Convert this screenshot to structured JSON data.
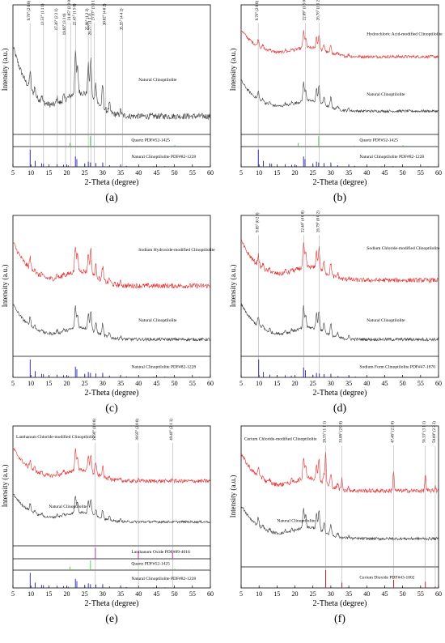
{
  "colors": {
    "natural": "#3a3a3a",
    "modified": "#e03030",
    "quartz": "#44cc44",
    "ref_blue": "#2222aa",
    "ref_purple": "#aa22aa",
    "ref_red": "#cc1111",
    "frame": "#000000"
  },
  "chart_data": [
    {
      "type": "line",
      "panel": "(a)",
      "xlabel": "2-Theta (degree)",
      "ylabel": "Intensity (a.u.)",
      "xlim": [
        5,
        60
      ],
      "x_ticks": [
        5,
        10,
        15,
        20,
        25,
        30,
        35,
        40,
        45,
        50,
        55,
        60
      ],
      "series": [
        {
          "name": "Natural Clinoptilolite",
          "role": "natural"
        }
      ],
      "peak_labels": [
        {
          "x": 9.76,
          "text": "9.76° (2 0 0)"
        },
        {
          "x": 13.53,
          "text": "13.53° (1 1 1)"
        },
        {
          "x": 17.36,
          "text": "17.36° (2 2 1)"
        },
        {
          "x": 19.66,
          "text": "19.66° (3 3 0)"
        },
        {
          "x": 21.05,
          "text": "21.05° (2 0 0)"
        },
        {
          "x": 22.43,
          "text": "22.43° (1 5 0)"
        },
        {
          "x": 25.98,
          "text": "25.98° (1 2 3)"
        },
        {
          "x": 26.77,
          "text": "26.77° (1 1 2)"
        },
        {
          "x": 27.67,
          "text": "27.67° (3 1 1)"
        },
        {
          "x": 30.82,
          "text": "30.82° (4 0 2)"
        },
        {
          "x": 35.55,
          "text": "35.55° (4 4 2)"
        }
      ],
      "references": [
        {
          "name": "Quartz PDF#52-1425",
          "role": "quartz",
          "lines": [
            [
              20.9,
              35
            ],
            [
              26.6,
              100
            ],
            [
              36.5,
              10
            ],
            [
              39.5,
              8
            ],
            [
              40.3,
              6
            ],
            [
              42.4,
              7
            ],
            [
              45.8,
              5
            ],
            [
              50.1,
              15
            ],
            [
              54.9,
              6
            ],
            [
              59.9,
              10
            ]
          ]
        },
        {
          "name": "Natural Clinoptilolite PDF#82-1228",
          "role": "ref_blue",
          "lines": [
            [
              9.8,
              100
            ],
            [
              11.2,
              35
            ],
            [
              13.0,
              20
            ],
            [
              13.5,
              18
            ],
            [
              17.3,
              15
            ],
            [
              19.1,
              12
            ],
            [
              20.4,
              8
            ],
            [
              22.4,
              60
            ],
            [
              22.8,
              45
            ],
            [
              25.0,
              20
            ],
            [
              26.0,
              30
            ],
            [
              26.6,
              25
            ],
            [
              28.1,
              22
            ],
            [
              30.0,
              25
            ],
            [
              31.9,
              10
            ],
            [
              35.0,
              8
            ],
            [
              36.6,
              6
            ],
            [
              40.0,
              5
            ],
            [
              44.2,
              4
            ],
            [
              47.3,
              4
            ],
            [
              50.0,
              4
            ],
            [
              55.0,
              3
            ],
            [
              57.0,
              3
            ]
          ]
        }
      ]
    },
    {
      "type": "line",
      "panel": "(b)",
      "xlabel": "2-Theta (degree)",
      "ylabel": "Intensity (a.u.)",
      "xlim": [
        5,
        60
      ],
      "x_ticks": [
        5,
        10,
        15,
        20,
        25,
        30,
        35,
        40,
        45,
        50,
        55,
        60
      ],
      "series": [
        {
          "name": "Hydrochloric Acid-modified Clinoptilolite",
          "role": "modified"
        },
        {
          "name": "Natural Clinoptilolite",
          "role": "natural"
        }
      ],
      "peak_labels": [
        {
          "x": 9.76,
          "text": "9.76° (2 0 0)"
        },
        {
          "x": 22.89,
          "text": "22.89° (1 5 0)"
        },
        {
          "x": 26.76,
          "text": "26.76° (1 1 2)"
        }
      ],
      "references": [
        {
          "name": "Quartz PDF#52-1425",
          "role": "quartz",
          "lines": [
            [
              20.9,
              35
            ],
            [
              26.6,
              100
            ],
            [
              36.5,
              10
            ],
            [
              39.5,
              8
            ],
            [
              40.3,
              6
            ],
            [
              42.4,
              7
            ],
            [
              45.8,
              5
            ],
            [
              50.1,
              15
            ],
            [
              54.9,
              6
            ],
            [
              59.9,
              10
            ]
          ]
        },
        {
          "name": "Natural Clinoptilolite PDF#82-1228",
          "role": "ref_blue",
          "lines": [
            [
              9.8,
              100
            ],
            [
              11.2,
              35
            ],
            [
              13.0,
              20
            ],
            [
              13.5,
              18
            ],
            [
              17.3,
              15
            ],
            [
              19.1,
              12
            ],
            [
              20.4,
              8
            ],
            [
              22.4,
              60
            ],
            [
              22.8,
              45
            ],
            [
              25.0,
              20
            ],
            [
              26.0,
              30
            ],
            [
              26.6,
              25
            ],
            [
              28.1,
              22
            ],
            [
              30.0,
              25
            ],
            [
              31.9,
              10
            ],
            [
              35.0,
              8
            ],
            [
              36.6,
              6
            ],
            [
              40.0,
              5
            ],
            [
              44.2,
              4
            ],
            [
              47.3,
              4
            ],
            [
              50.0,
              4
            ],
            [
              55.0,
              3
            ],
            [
              57.0,
              3
            ]
          ]
        }
      ]
    },
    {
      "type": "line",
      "panel": "(c)",
      "xlabel": "2-Theta (degree)",
      "ylabel": "Intensity (a.u.)",
      "xlim": [
        5,
        60
      ],
      "x_ticks": [
        5,
        10,
        15,
        20,
        25,
        30,
        35,
        40,
        45,
        50,
        55,
        60
      ],
      "series": [
        {
          "name": "Sodium Hydroxide-modified Clinoptilolite",
          "role": "modified"
        },
        {
          "name": "Natural Clinoptilolite",
          "role": "natural"
        }
      ],
      "peak_labels": [],
      "references": [
        {
          "name": "Natural Clinoptilolite PDF#82-1228",
          "role": "ref_blue",
          "lines": [
            [
              9.8,
              100
            ],
            [
              11.2,
              35
            ],
            [
              13.0,
              20
            ],
            [
              13.5,
              18
            ],
            [
              17.3,
              15
            ],
            [
              19.1,
              12
            ],
            [
              20.4,
              8
            ],
            [
              22.4,
              60
            ],
            [
              22.8,
              45
            ],
            [
              25.0,
              20
            ],
            [
              26.0,
              30
            ],
            [
              26.6,
              25
            ],
            [
              28.1,
              22
            ],
            [
              30.0,
              25
            ],
            [
              31.9,
              10
            ],
            [
              35.0,
              8
            ],
            [
              36.6,
              6
            ],
            [
              40.0,
              5
            ],
            [
              44.2,
              4
            ],
            [
              47.3,
              4
            ],
            [
              50.0,
              4
            ],
            [
              55.0,
              3
            ],
            [
              57.0,
              3
            ]
          ]
        }
      ]
    },
    {
      "type": "line",
      "panel": "(d)",
      "xlabel": "2-Theta (degree)",
      "ylabel": "Intensity (a.u.)",
      "xlim": [
        5,
        60
      ],
      "x_ticks": [
        5,
        10,
        15,
        20,
        25,
        30,
        35,
        40,
        45,
        50,
        55,
        60
      ],
      "series": [
        {
          "name": "Sodium Chloride-modified Clinoptilolite",
          "role": "modified"
        },
        {
          "name": "Natural Clinoptilolite",
          "role": "natural"
        }
      ],
      "peak_labels": [
        {
          "x": 9.85,
          "text": "9.85° (0 2 0)"
        },
        {
          "x": 22.48,
          "text": "22.48° (4 0 0)"
        },
        {
          "x": 26.79,
          "text": "26.79° (0 0 2)"
        }
      ],
      "references": [
        {
          "name": "Sodium Form Clinoptilolite PDF#47-1870",
          "role": "ref_blue",
          "lines": [
            [
              9.9,
              100
            ],
            [
              11.2,
              30
            ],
            [
              13.0,
              15
            ],
            [
              17.3,
              12
            ],
            [
              19.0,
              10
            ],
            [
              22.4,
              55
            ],
            [
              22.9,
              40
            ],
            [
              25.0,
              15
            ],
            [
              26.0,
              25
            ],
            [
              26.8,
              22
            ],
            [
              28.1,
              18
            ],
            [
              30.0,
              20
            ],
            [
              32.0,
              8
            ],
            [
              35.1,
              6
            ],
            [
              36.8,
              5
            ],
            [
              40.0,
              4
            ],
            [
              44.5,
              3
            ]
          ]
        }
      ]
    },
    {
      "type": "line",
      "panel": "(e)",
      "xlabel": "2-Theta (degree)",
      "ylabel": "Intensity (a.u.)",
      "xlim": [
        5,
        60
      ],
      "x_ticks": [
        5,
        10,
        15,
        20,
        25,
        30,
        35,
        40,
        45,
        50,
        55,
        60
      ],
      "series": [
        {
          "name": "Lanthanum Chloride-modified Clinoptilolite",
          "role": "modified"
        },
        {
          "name": "Natural Clinoptilolite",
          "role": "natural"
        }
      ],
      "peak_labels": [
        {
          "x": 27.96,
          "text": "27.96° (1 0 0)"
        },
        {
          "x": 39.95,
          "text": "39.95° (2 0 0)"
        },
        {
          "x": 49.46,
          "text": "49.46° (2 1 1)"
        }
      ],
      "references": [
        {
          "name": "Lanthanum Oxide PDF#89-4016",
          "role": "ref_purple",
          "lines": [
            [
              27.96,
              100
            ],
            [
              39.95,
              55
            ],
            [
              49.46,
              60
            ]
          ]
        },
        {
          "name": "Quartz PDF#52-1425",
          "role": "quartz",
          "lines": [
            [
              20.9,
              35
            ],
            [
              26.6,
              100
            ],
            [
              36.5,
              10
            ],
            [
              39.5,
              8
            ],
            [
              40.3,
              6
            ],
            [
              42.4,
              7
            ],
            [
              45.8,
              5
            ],
            [
              50.1,
              15
            ],
            [
              54.9,
              6
            ],
            [
              59.9,
              10
            ]
          ]
        },
        {
          "name": "Natural Clinoptilolite PDF#82-1228",
          "role": "ref_blue",
          "lines": [
            [
              9.8,
              100
            ],
            [
              11.2,
              35
            ],
            [
              13.0,
              20
            ],
            [
              13.5,
              18
            ],
            [
              17.3,
              15
            ],
            [
              19.1,
              12
            ],
            [
              20.4,
              8
            ],
            [
              22.4,
              60
            ],
            [
              22.8,
              45
            ],
            [
              25.0,
              20
            ],
            [
              26.0,
              30
            ],
            [
              26.6,
              25
            ],
            [
              28.1,
              22
            ],
            [
              30.0,
              25
            ],
            [
              31.9,
              10
            ],
            [
              35.0,
              8
            ],
            [
              36.6,
              6
            ],
            [
              40.0,
              5
            ],
            [
              44.2,
              4
            ],
            [
              47.3,
              4
            ],
            [
              50.0,
              4
            ],
            [
              55.0,
              3
            ],
            [
              57.0,
              3
            ]
          ]
        }
      ]
    },
    {
      "type": "line",
      "panel": "(f)",
      "xlabel": "2-Theta (degree)",
      "ylabel": "Intensity (a.u.)",
      "xlim": [
        5,
        60
      ],
      "x_ticks": [
        5,
        10,
        15,
        20,
        25,
        30,
        35,
        40,
        45,
        50,
        55,
        60
      ],
      "series": [
        {
          "name": "Cerium Chloride-modified Clinoptilolite",
          "role": "modified"
        },
        {
          "name": "Natural Clinoptilolite",
          "role": "natural"
        }
      ],
      "peak_labels": [
        {
          "x": 28.55,
          "text": "28.55° (1 1 1)"
        },
        {
          "x": 33.08,
          "text": "33.08° (2 0 0)"
        },
        {
          "x": 47.48,
          "text": "47.48° (2 2 0)"
        },
        {
          "x": 56.33,
          "text": "56.33° (3 1 1)"
        },
        {
          "x": 59.09,
          "text": "59.09° (2 2 2)"
        }
      ],
      "references": [
        {
          "name": "Cerium Dioxide PDF#43-1002",
          "role": "ref_red",
          "lines": [
            [
              28.55,
              100
            ],
            [
              33.08,
              30
            ],
            [
              47.48,
              45
            ],
            [
              56.33,
              35
            ],
            [
              59.09,
              8
            ]
          ]
        }
      ]
    }
  ]
}
